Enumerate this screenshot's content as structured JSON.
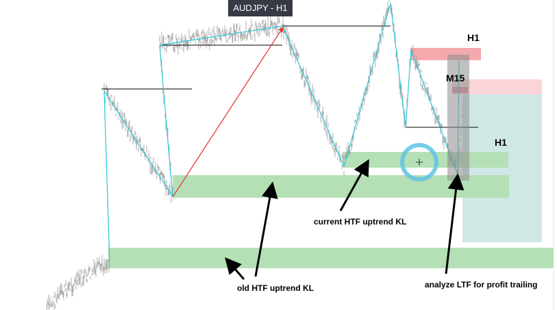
{
  "symbol_label": "AUDJPY - H1",
  "timeframes": {
    "h1_top": "H1",
    "m15": "M15",
    "h1_mid": "H1"
  },
  "annotations": {
    "current_kl": "current HTF uptrend KL",
    "old_kl": "old HTF uptrend KL",
    "analyze_ltf": "analyze LTF for profit trailing"
  },
  "colors": {
    "background": "#ffffff",
    "price_wick": "#9a9a9a",
    "zigzag": "#26c6da",
    "impulse_arrow": "#e53935",
    "key_level_zone": "#b5dfb5",
    "supply_zone": "#f4a9ad",
    "supply_zone_light": "#fbd4d7",
    "target_zone": "#cfe8e6",
    "m15_box": "#8c8c8c",
    "marker_circle": "#5ec3e6",
    "badge_background": "#363a45",
    "annotation_arrow": "#000000"
  },
  "icons": {
    "crosshair": "crosshair-icon",
    "circle_marker": "circle-marker-icon"
  }
}
